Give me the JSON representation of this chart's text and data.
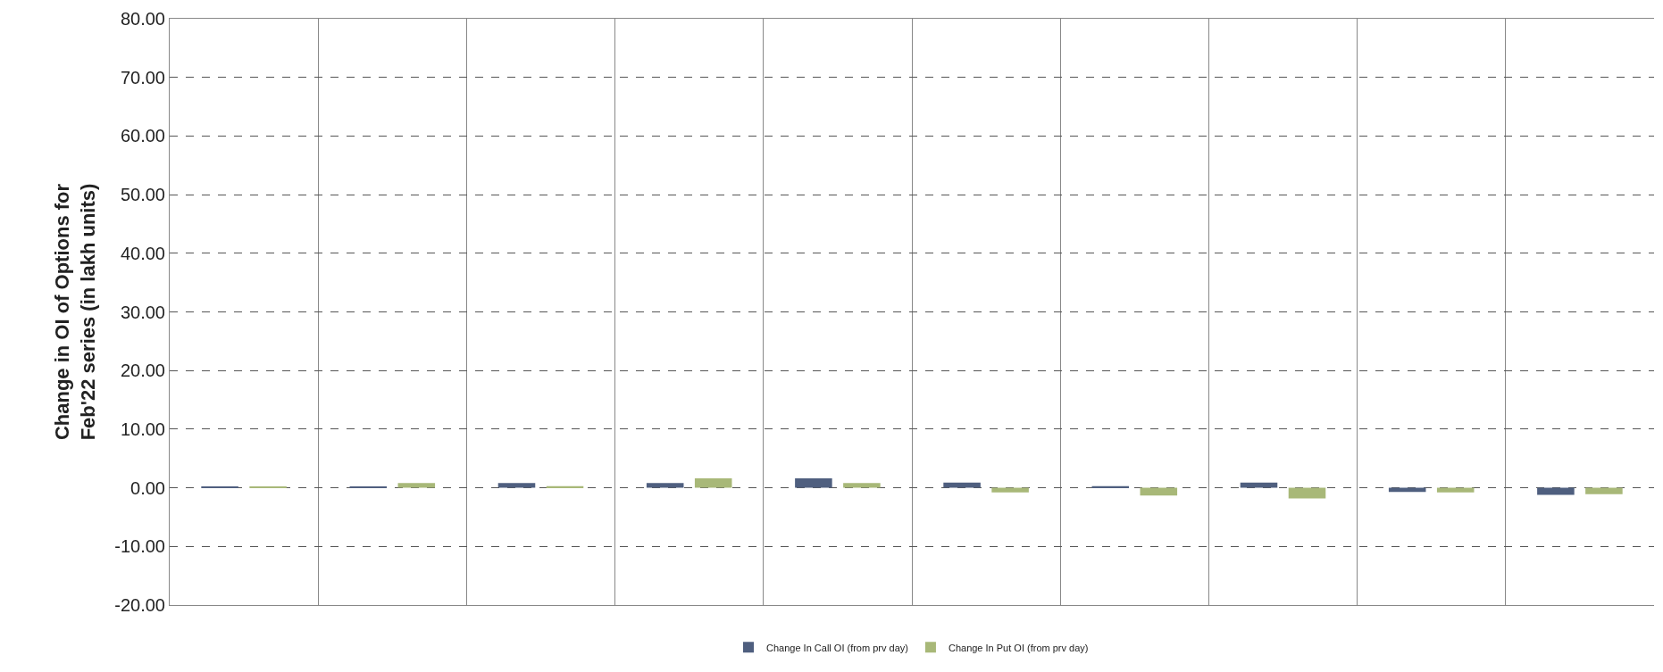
{
  "chart_data": {
    "type": "bar",
    "ylabel": "Change in OI of Options for Feb'22 series (in lakh units)",
    "categories": [
      null,
      null,
      null,
      null,
      null,
      null,
      null,
      null,
      null,
      null
    ],
    "series": [
      {
        "name": "Change In Call OI (from prv day)",
        "color": "#4f5f7f",
        "values": [
          0.2,
          0.2,
          0.8,
          0.8,
          1.6,
          0.9,
          0.3,
          0.9,
          -0.7,
          -1.2
        ]
      },
      {
        "name": "Change In Put OI (from prv day)",
        "color": "#a8b878",
        "values": [
          0.2,
          0.8,
          0.3,
          1.6,
          0.8,
          -0.8,
          -1.3,
          -1.8,
          -0.8,
          -1.1
        ]
      }
    ],
    "ylim": [
      -20,
      80
    ],
    "yticks": [
      {
        "value": -20,
        "label": "-20.00"
      },
      {
        "value": -10,
        "label": "-10.00"
      },
      {
        "value": 0,
        "label": "0.00"
      },
      {
        "value": 10,
        "label": "10.00"
      },
      {
        "value": 20,
        "label": "20.00"
      },
      {
        "value": 30,
        "label": "30.00"
      },
      {
        "value": 40,
        "label": "40.00"
      },
      {
        "value": 50,
        "label": "50.00"
      },
      {
        "value": 60,
        "label": "60.00"
      },
      {
        "value": 70,
        "label": "70.00"
      },
      {
        "value": 80,
        "label": "80.00"
      }
    ],
    "grid": true,
    "legend": "bottom"
  }
}
